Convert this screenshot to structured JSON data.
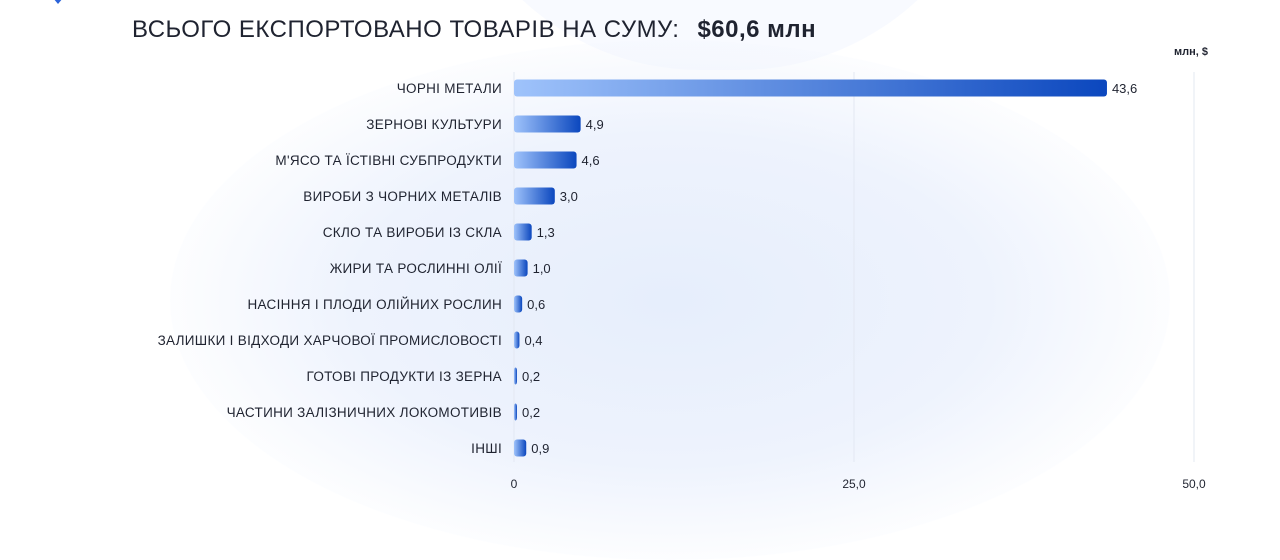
{
  "header": {
    "title": "ВСЬОГО ЕКСПОРТОВАНО ТОВАРІВ НА СУМУ:",
    "amount": "$60,6 млн"
  },
  "chart_data": {
    "type": "bar",
    "orientation": "horizontal",
    "unit_label": "млн, $",
    "categories": [
      "ЧОРНІ МЕТАЛИ",
      "ЗЕРНОВІ КУЛЬТУРИ",
      "М'ЯСО ТА ЇСТІВНІ СУБПРОДУКТИ",
      "ВИРОБИ З ЧОРНИХ МЕТАЛІВ",
      "СКЛО ТА ВИРОБИ ІЗ СКЛА",
      "ЖИРИ ТА РОСЛИННІ ОЛІЇ",
      "НАСІННЯ І ПЛОДИ ОЛІЙНИХ РОСЛИН",
      "ЗАЛИШКИ І ВІДХОДИ ХАРЧОВОЇ ПРОМИСЛОВОСТІ",
      "ГОТОВІ ПРОДУКТИ ІЗ ЗЕРНА",
      "ЧАСТИНИ ЗАЛІЗНИЧНИХ ЛОКОМОТИВІВ",
      "ІНШІ"
    ],
    "values": [
      43.6,
      4.9,
      4.6,
      3.0,
      1.3,
      1.0,
      0.6,
      0.4,
      0.2,
      0.2,
      0.9
    ],
    "value_labels": [
      "43,6",
      "4,9",
      "4,6",
      "3,0",
      "1,3",
      "1,0",
      "0,6",
      "0,4",
      "0,2",
      "0,2",
      "0,9"
    ],
    "x_ticks": [
      0,
      25,
      50
    ],
    "x_tick_labels": [
      "0",
      "25,0",
      "50,0"
    ],
    "xlim": [
      0,
      50
    ],
    "grid": true,
    "legend": "none",
    "colors": {
      "bar_start": "#9fc3fb",
      "bar_end": "#0b47be",
      "grid": "#e3e8f2",
      "text": "#1f2330"
    }
  }
}
